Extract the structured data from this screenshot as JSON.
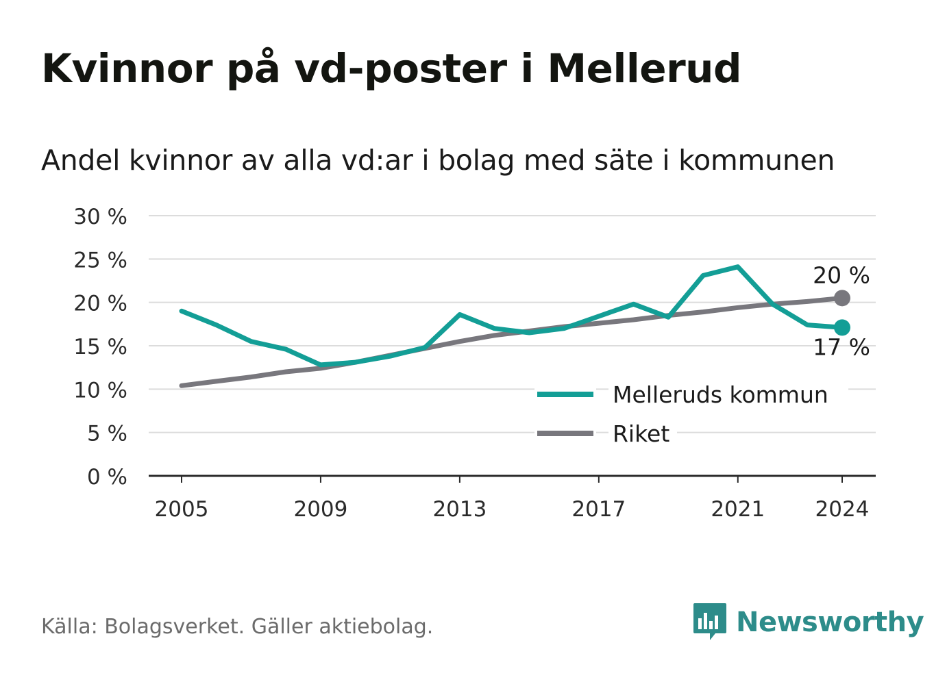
{
  "title": "Kvinnor på vd-poster i Mellerud",
  "subtitle": "Andel kvinnor av alla vd:ar i bolag med säte i kommunen",
  "source": "Källa: Bolagsverket. Gäller aktiebolag.",
  "brand": {
    "name": "Newsworthy",
    "icon": "bar-chart-speech-bubble-icon",
    "color": "#2d8c8a"
  },
  "chart_data": {
    "type": "line",
    "x": [
      2005,
      2006,
      2007,
      2008,
      2009,
      2010,
      2011,
      2012,
      2013,
      2014,
      2015,
      2016,
      2017,
      2018,
      2019,
      2020,
      2021,
      2022,
      2023,
      2024
    ],
    "x_tick_labels": [
      "2005",
      "2009",
      "2013",
      "2017",
      "2021",
      "2024"
    ],
    "x_ticks": [
      2005,
      2009,
      2013,
      2017,
      2021,
      2024
    ],
    "y_ticks": [
      0,
      5,
      10,
      15,
      20,
      25,
      30
    ],
    "y_tick_labels": [
      "0 %",
      "5 %",
      "10 %",
      "15 %",
      "20 %",
      "25 %",
      "30 %"
    ],
    "ylim": [
      0,
      30
    ],
    "grid": true,
    "legend_position": "bottom-right",
    "series": [
      {
        "name": "Melleruds kommun",
        "color": "#139e96",
        "values": [
          19.0,
          17.4,
          15.5,
          14.6,
          12.8,
          13.1,
          13.8,
          14.8,
          18.6,
          17.0,
          16.5,
          17.0,
          18.4,
          19.8,
          18.3,
          23.1,
          24.1,
          19.8,
          17.4,
          17.1
        ],
        "end_label": "17 %"
      },
      {
        "name": "Riket",
        "color": "#78777d",
        "values": [
          10.4,
          10.9,
          11.4,
          12.0,
          12.4,
          13.1,
          13.9,
          14.7,
          15.5,
          16.2,
          16.7,
          17.2,
          17.6,
          18.0,
          18.5,
          18.9,
          19.4,
          19.8,
          20.1,
          20.5
        ],
        "end_label": "20 %"
      }
    ]
  }
}
